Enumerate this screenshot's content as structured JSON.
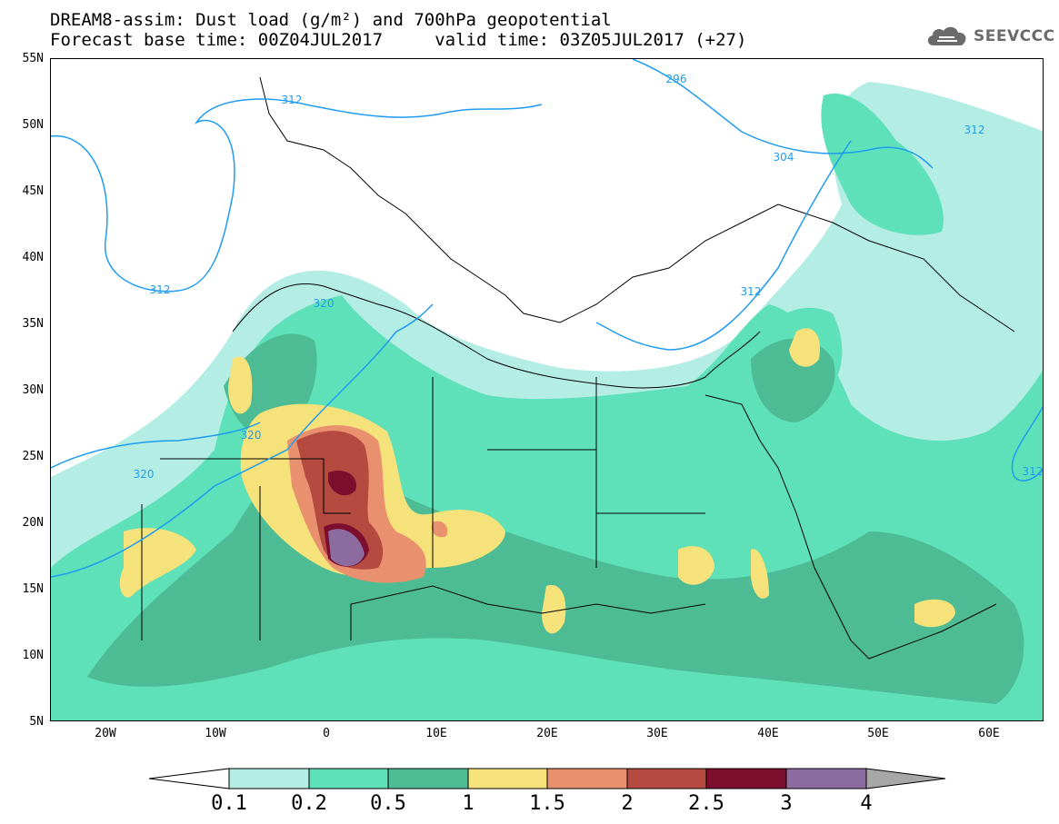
{
  "title": {
    "line1": "DREAM8-assim: Dust load (g/m²) and 700hPa geopotential",
    "line2": "Forecast base time: 00Z04JUL2017     valid time: 03Z05JUL2017 (+27)"
  },
  "logo": {
    "text": "SEEVCCC",
    "icon": "cloud-icon"
  },
  "axes": {
    "lat_labels": [
      "55N",
      "50N",
      "45N",
      "40N",
      "35N",
      "30N",
      "25N",
      "20N",
      "15N",
      "10N",
      "5N"
    ],
    "lon_labels": [
      "20W",
      "10W",
      "0",
      "10E",
      "20E",
      "30E",
      "40E",
      "50E",
      "60E"
    ]
  },
  "contours": {
    "labels": [
      "312",
      "304",
      "296",
      "312",
      "312",
      "320",
      "320",
      "320",
      "312",
      "312"
    ]
  },
  "colorbar": {
    "labels": [
      "0.1",
      "0.2",
      "0.5",
      "1",
      "1.5",
      "2",
      "2.5",
      "3",
      "4"
    ],
    "colors": [
      "#ffffff",
      "#b4ede4",
      "#5ee0b9",
      "#4dbc94",
      "#f5e27a",
      "#e9906e",
      "#b44a40",
      "#7c0e2e",
      "#8c6b9f",
      "#a7a7a7"
    ]
  },
  "map_colors": {
    "contour_line": "#1f9cf0",
    "border": "#000000"
  }
}
